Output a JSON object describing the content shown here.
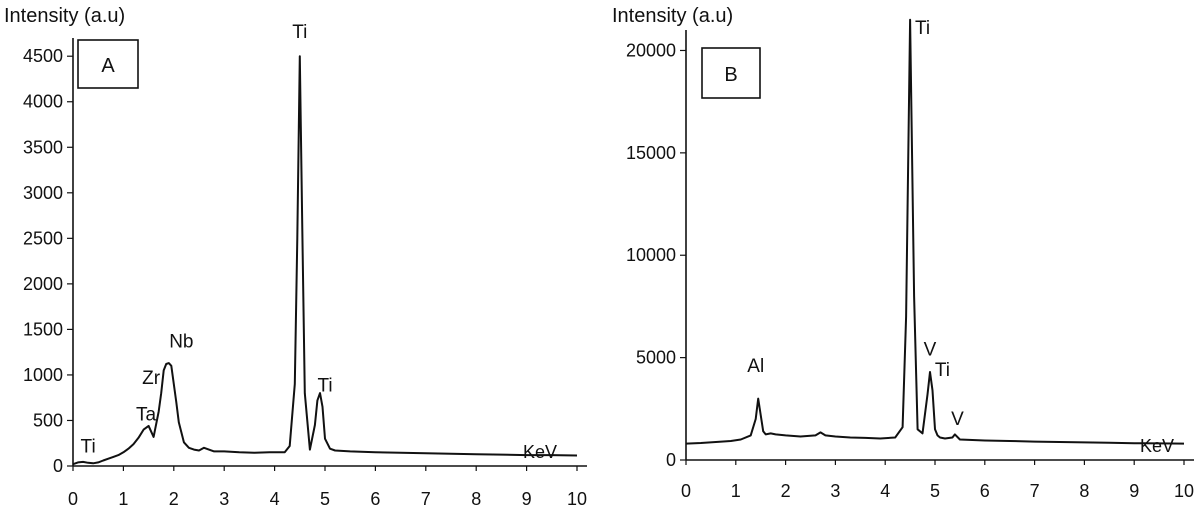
{
  "chart_data": [
    {
      "type": "line",
      "panel_label": "A",
      "ylabel": "Intensity (a.u)",
      "xlabel": "KeV",
      "xlim": [
        0,
        10
      ],
      "ylim": [
        0,
        4700
      ],
      "x_ticks": [
        "0",
        "1",
        "2",
        "3",
        "4",
        "5",
        "6",
        "7",
        "8",
        "9",
        "10"
      ],
      "y_ticks": [
        "0",
        "500",
        "1000",
        "1500",
        "2000",
        "2500",
        "3000",
        "3500",
        "4000",
        "4500"
      ],
      "series": [
        {
          "x": [
            0,
            0.1,
            0.2,
            0.3,
            0.4,
            0.5,
            0.6,
            0.7,
            0.8,
            0.9,
            1.0,
            1.1,
            1.2,
            1.3,
            1.4,
            1.5,
            1.6,
            1.7,
            1.75,
            1.8,
            1.85,
            1.9,
            1.95,
            2.0,
            2.05,
            2.1,
            2.2,
            2.3,
            2.4,
            2.5,
            2.6,
            2.8,
            3.0,
            3.3,
            3.6,
            3.9,
            4.2,
            4.3,
            4.4,
            4.45,
            4.5,
            4.55,
            4.6,
            4.7,
            4.8,
            4.85,
            4.9,
            4.95,
            5.0,
            5.1,
            5.2,
            5.5,
            6.0,
            6.5,
            7.0,
            7.5,
            8.0,
            8.5,
            9.0,
            9.5,
            10.0
          ],
          "y": [
            20,
            40,
            45,
            35,
            30,
            40,
            60,
            80,
            100,
            120,
            150,
            190,
            240,
            310,
            400,
            440,
            320,
            600,
            800,
            1050,
            1120,
            1130,
            1100,
            900,
            700,
            480,
            260,
            200,
            180,
            170,
            200,
            160,
            160,
            150,
            145,
            150,
            150,
            220,
            900,
            2500,
            4500,
            2600,
            800,
            180,
            450,
            720,
            800,
            650,
            300,
            190,
            170,
            160,
            150,
            145,
            140,
            135,
            130,
            125,
            120,
            120,
            115
          ]
        }
      ],
      "annotations": [
        {
          "text": "Ti",
          "x": 0.3,
          "y": 150
        },
        {
          "text": "Ta",
          "x": 1.45,
          "y": 500
        },
        {
          "text": "Zr",
          "x": 1.55,
          "y": 900
        },
        {
          "text": "Nb",
          "x": 2.15,
          "y": 1300
        },
        {
          "text": "Ti",
          "x": 4.5,
          "y": 4700
        },
        {
          "text": "Ti",
          "x": 5.0,
          "y": 820
        }
      ]
    },
    {
      "type": "line",
      "panel_label": "B",
      "ylabel": "Intensity (a.u)",
      "xlabel": "KeV",
      "xlim": [
        0,
        10
      ],
      "ylim": [
        0,
        21000
      ],
      "x_ticks": [
        "0",
        "1",
        "2",
        "3",
        "4",
        "5",
        "6",
        "7",
        "8",
        "9",
        "10"
      ],
      "y_ticks": [
        "0",
        "5000",
        "10000",
        "15000",
        "20000"
      ],
      "series": [
        {
          "x": [
            0,
            0.3,
            0.6,
            0.9,
            1.1,
            1.3,
            1.4,
            1.45,
            1.5,
            1.55,
            1.6,
            1.7,
            1.8,
            2.0,
            2.3,
            2.6,
            2.7,
            2.8,
            3.0,
            3.3,
            3.6,
            3.9,
            4.2,
            4.35,
            4.42,
            4.5,
            4.58,
            4.65,
            4.75,
            4.85,
            4.9,
            4.95,
            5.0,
            5.05,
            5.1,
            5.2,
            5.35,
            5.4,
            5.5,
            6.0,
            6.5,
            7.0,
            7.5,
            8.0,
            8.5,
            9.0,
            9.5,
            10.0
          ],
          "y": [
            800,
            830,
            880,
            930,
            1000,
            1200,
            2000,
            3000,
            2200,
            1400,
            1250,
            1300,
            1250,
            1200,
            1150,
            1200,
            1350,
            1200,
            1150,
            1100,
            1080,
            1050,
            1100,
            1600,
            7000,
            21500,
            8000,
            1500,
            1300,
            3200,
            4300,
            3400,
            1500,
            1200,
            1100,
            1050,
            1100,
            1250,
            1000,
            950,
            930,
            900,
            880,
            860,
            840,
            820,
            810,
            800
          ]
        }
      ],
      "annotations": [
        {
          "text": "Ti",
          "x": 4.75,
          "y": 20800
        },
        {
          "text": "Al",
          "x": 1.4,
          "y": 4300
        },
        {
          "text": "V",
          "x": 4.9,
          "y": 5100
        },
        {
          "text": "Ti",
          "x": 5.15,
          "y": 4100
        },
        {
          "text": "V",
          "x": 5.45,
          "y": 1700
        }
      ]
    }
  ]
}
